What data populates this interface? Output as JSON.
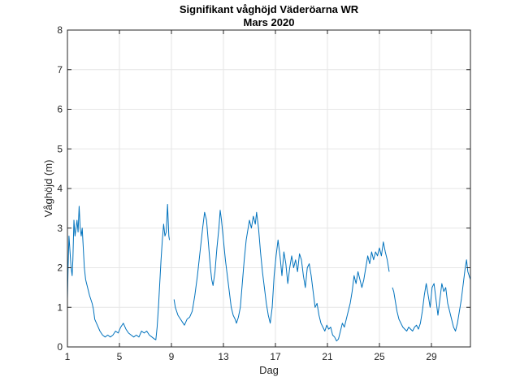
{
  "chart_data": {
    "type": "line",
    "title": "Signifikant våghöjd Väderöarna WR",
    "subtitle": "Mars 2020",
    "xlabel": "Dag",
    "ylabel": "Våghöjd (m)",
    "xlim": [
      1,
      32
    ],
    "ylim": [
      0,
      8
    ],
    "xticks": [
      1,
      5,
      9,
      13,
      17,
      21,
      25,
      29
    ],
    "yticks": [
      0,
      1,
      2,
      3,
      4,
      5,
      6,
      7,
      8
    ],
    "grid": true,
    "legend": false,
    "series": [
      {
        "name": "Våghöjd",
        "color": "#0072bd",
        "segments": [
          [
            [
              1.0,
              1.2
            ],
            [
              1.05,
              2.0
            ],
            [
              1.12,
              2.8
            ],
            [
              1.2,
              2.4
            ],
            [
              1.28,
              2.0
            ],
            [
              1.36,
              1.8
            ],
            [
              1.42,
              2.2
            ],
            [
              1.5,
              3.2
            ],
            [
              1.58,
              2.8
            ],
            [
              1.66,
              3.0
            ],
            [
              1.74,
              3.2
            ],
            [
              1.82,
              2.9
            ],
            [
              1.9,
              3.55
            ],
            [
              1.98,
              3.0
            ],
            [
              2.06,
              2.8
            ],
            [
              2.14,
              3.0
            ],
            [
              2.22,
              2.5
            ],
            [
              2.3,
              2.0
            ],
            [
              2.4,
              1.7
            ],
            [
              2.55,
              1.5
            ],
            [
              2.7,
              1.3
            ],
            [
              2.9,
              1.1
            ],
            [
              3.0,
              0.95
            ],
            [
              3.1,
              0.7
            ],
            [
              3.3,
              0.55
            ],
            [
              3.5,
              0.4
            ],
            [
              3.7,
              0.3
            ],
            [
              3.9,
              0.25
            ],
            [
              4.1,
              0.3
            ],
            [
              4.3,
              0.25
            ],
            [
              4.5,
              0.3
            ],
            [
              4.7,
              0.4
            ],
            [
              4.9,
              0.35
            ],
            [
              5.1,
              0.5
            ],
            [
              5.3,
              0.6
            ],
            [
              5.5,
              0.45
            ],
            [
              5.7,
              0.35
            ],
            [
              5.9,
              0.3
            ],
            [
              6.1,
              0.25
            ],
            [
              6.3,
              0.3
            ],
            [
              6.5,
              0.25
            ],
            [
              6.7,
              0.4
            ],
            [
              6.9,
              0.35
            ],
            [
              7.1,
              0.4
            ],
            [
              7.3,
              0.3
            ],
            [
              7.5,
              0.25
            ],
            [
              7.7,
              0.2
            ],
            [
              7.8,
              0.18
            ],
            [
              7.9,
              0.5
            ],
            [
              8.0,
              1.0
            ],
            [
              8.1,
              1.6
            ],
            [
              8.2,
              2.2
            ],
            [
              8.3,
              2.7
            ],
            [
              8.4,
              3.1
            ],
            [
              8.5,
              2.8
            ],
            [
              8.6,
              2.9
            ],
            [
              8.7,
              3.6
            ],
            [
              8.8,
              2.8
            ],
            [
              8.85,
              2.7
            ]
          ],
          [
            [
              9.2,
              1.2
            ],
            [
              9.3,
              1.0
            ],
            [
              9.5,
              0.8
            ],
            [
              9.7,
              0.7
            ],
            [
              9.9,
              0.6
            ],
            [
              10.0,
              0.55
            ],
            [
              10.2,
              0.7
            ],
            [
              10.4,
              0.75
            ],
            [
              10.6,
              0.9
            ],
            [
              10.8,
              1.3
            ],
            [
              11.0,
              1.8
            ],
            [
              11.2,
              2.4
            ],
            [
              11.4,
              3.0
            ],
            [
              11.55,
              3.4
            ],
            [
              11.7,
              3.2
            ],
            [
              11.85,
              2.6
            ],
            [
              12.0,
              2.0
            ],
            [
              12.1,
              1.7
            ],
            [
              12.2,
              1.55
            ],
            [
              12.35,
              1.9
            ],
            [
              12.5,
              2.5
            ],
            [
              12.65,
              3.0
            ],
            [
              12.75,
              3.45
            ],
            [
              12.85,
              3.2
            ],
            [
              13.0,
              2.7
            ],
            [
              13.15,
              2.2
            ],
            [
              13.3,
              1.8
            ],
            [
              13.45,
              1.4
            ],
            [
              13.6,
              1.0
            ],
            [
              13.75,
              0.8
            ],
            [
              13.9,
              0.7
            ],
            [
              14.0,
              0.6
            ],
            [
              14.15,
              0.75
            ],
            [
              14.3,
              1.0
            ],
            [
              14.45,
              1.6
            ],
            [
              14.6,
              2.2
            ],
            [
              14.75,
              2.7
            ],
            [
              14.9,
              3.0
            ],
            [
              15.0,
              3.2
            ],
            [
              15.15,
              3.0
            ],
            [
              15.3,
              3.3
            ],
            [
              15.45,
              3.1
            ],
            [
              15.55,
              3.4
            ],
            [
              15.7,
              3.0
            ],
            [
              15.85,
              2.4
            ],
            [
              16.0,
              1.9
            ],
            [
              16.15,
              1.5
            ],
            [
              16.3,
              1.1
            ],
            [
              16.45,
              0.8
            ],
            [
              16.6,
              0.6
            ],
            [
              16.75,
              1.0
            ],
            [
              16.9,
              1.8
            ],
            [
              17.05,
              2.3
            ],
            [
              17.2,
              2.7
            ],
            [
              17.35,
              2.3
            ],
            [
              17.5,
              1.8
            ],
            [
              17.65,
              2.4
            ],
            [
              17.8,
              2.1
            ],
            [
              17.95,
              1.6
            ],
            [
              18.1,
              2.0
            ],
            [
              18.25,
              2.3
            ],
            [
              18.4,
              2.0
            ],
            [
              18.55,
              2.2
            ],
            [
              18.7,
              1.9
            ],
            [
              18.85,
              2.35
            ],
            [
              19.0,
              2.2
            ],
            [
              19.15,
              1.8
            ],
            [
              19.3,
              1.5
            ],
            [
              19.45,
              2.0
            ],
            [
              19.6,
              2.1
            ],
            [
              19.75,
              1.8
            ],
            [
              19.9,
              1.4
            ],
            [
              20.05,
              1.0
            ],
            [
              20.2,
              1.1
            ],
            [
              20.35,
              0.8
            ],
            [
              20.5,
              0.6
            ],
            [
              20.65,
              0.5
            ],
            [
              20.8,
              0.4
            ],
            [
              20.95,
              0.55
            ],
            [
              21.1,
              0.45
            ],
            [
              21.25,
              0.5
            ],
            [
              21.4,
              0.3
            ],
            [
              21.55,
              0.25
            ],
            [
              21.7,
              0.15
            ],
            [
              21.85,
              0.2
            ],
            [
              22.0,
              0.4
            ],
            [
              22.15,
              0.6
            ],
            [
              22.3,
              0.5
            ],
            [
              22.45,
              0.7
            ],
            [
              22.6,
              0.9
            ],
            [
              22.75,
              1.1
            ],
            [
              22.9,
              1.4
            ],
            [
              23.05,
              1.8
            ],
            [
              23.2,
              1.6
            ],
            [
              23.35,
              1.9
            ],
            [
              23.5,
              1.7
            ],
            [
              23.65,
              1.5
            ],
            [
              23.8,
              1.7
            ],
            [
              23.95,
              2.0
            ],
            [
              24.1,
              2.3
            ],
            [
              24.25,
              2.1
            ],
            [
              24.4,
              2.4
            ],
            [
              24.55,
              2.2
            ],
            [
              24.7,
              2.4
            ],
            [
              24.85,
              2.3
            ],
            [
              25.0,
              2.5
            ],
            [
              25.15,
              2.3
            ],
            [
              25.3,
              2.65
            ],
            [
              25.45,
              2.4
            ],
            [
              25.6,
              2.2
            ],
            [
              25.75,
              1.9
            ]
          ],
          [
            [
              26.0,
              1.5
            ],
            [
              26.1,
              1.4
            ],
            [
              26.2,
              1.2
            ],
            [
              26.35,
              0.9
            ],
            [
              26.5,
              0.7
            ],
            [
              26.65,
              0.6
            ],
            [
              26.8,
              0.5
            ],
            [
              26.95,
              0.45
            ],
            [
              27.1,
              0.4
            ],
            [
              27.25,
              0.5
            ],
            [
              27.4,
              0.45
            ],
            [
              27.55,
              0.4
            ],
            [
              27.7,
              0.5
            ],
            [
              27.85,
              0.55
            ],
            [
              28.0,
              0.45
            ],
            [
              28.15,
              0.6
            ],
            [
              28.3,
              0.9
            ],
            [
              28.45,
              1.3
            ],
            [
              28.6,
              1.6
            ],
            [
              28.75,
              1.3
            ],
            [
              28.9,
              1.0
            ],
            [
              29.05,
              1.5
            ],
            [
              29.2,
              1.6
            ],
            [
              29.35,
              1.2
            ],
            [
              29.5,
              0.8
            ],
            [
              29.65,
              1.2
            ],
            [
              29.8,
              1.6
            ],
            [
              29.95,
              1.4
            ],
            [
              30.1,
              1.5
            ],
            [
              30.25,
              1.1
            ],
            [
              30.4,
              0.9
            ],
            [
              30.55,
              0.7
            ],
            [
              30.7,
              0.5
            ],
            [
              30.85,
              0.4
            ],
            [
              31.0,
              0.6
            ],
            [
              31.15,
              0.9
            ],
            [
              31.3,
              1.2
            ],
            [
              31.45,
              1.6
            ],
            [
              31.6,
              2.0
            ],
            [
              31.7,
              2.2
            ],
            [
              31.8,
              1.9
            ],
            [
              31.9,
              1.8
            ],
            [
              32.0,
              1.7
            ]
          ]
        ]
      }
    ]
  }
}
